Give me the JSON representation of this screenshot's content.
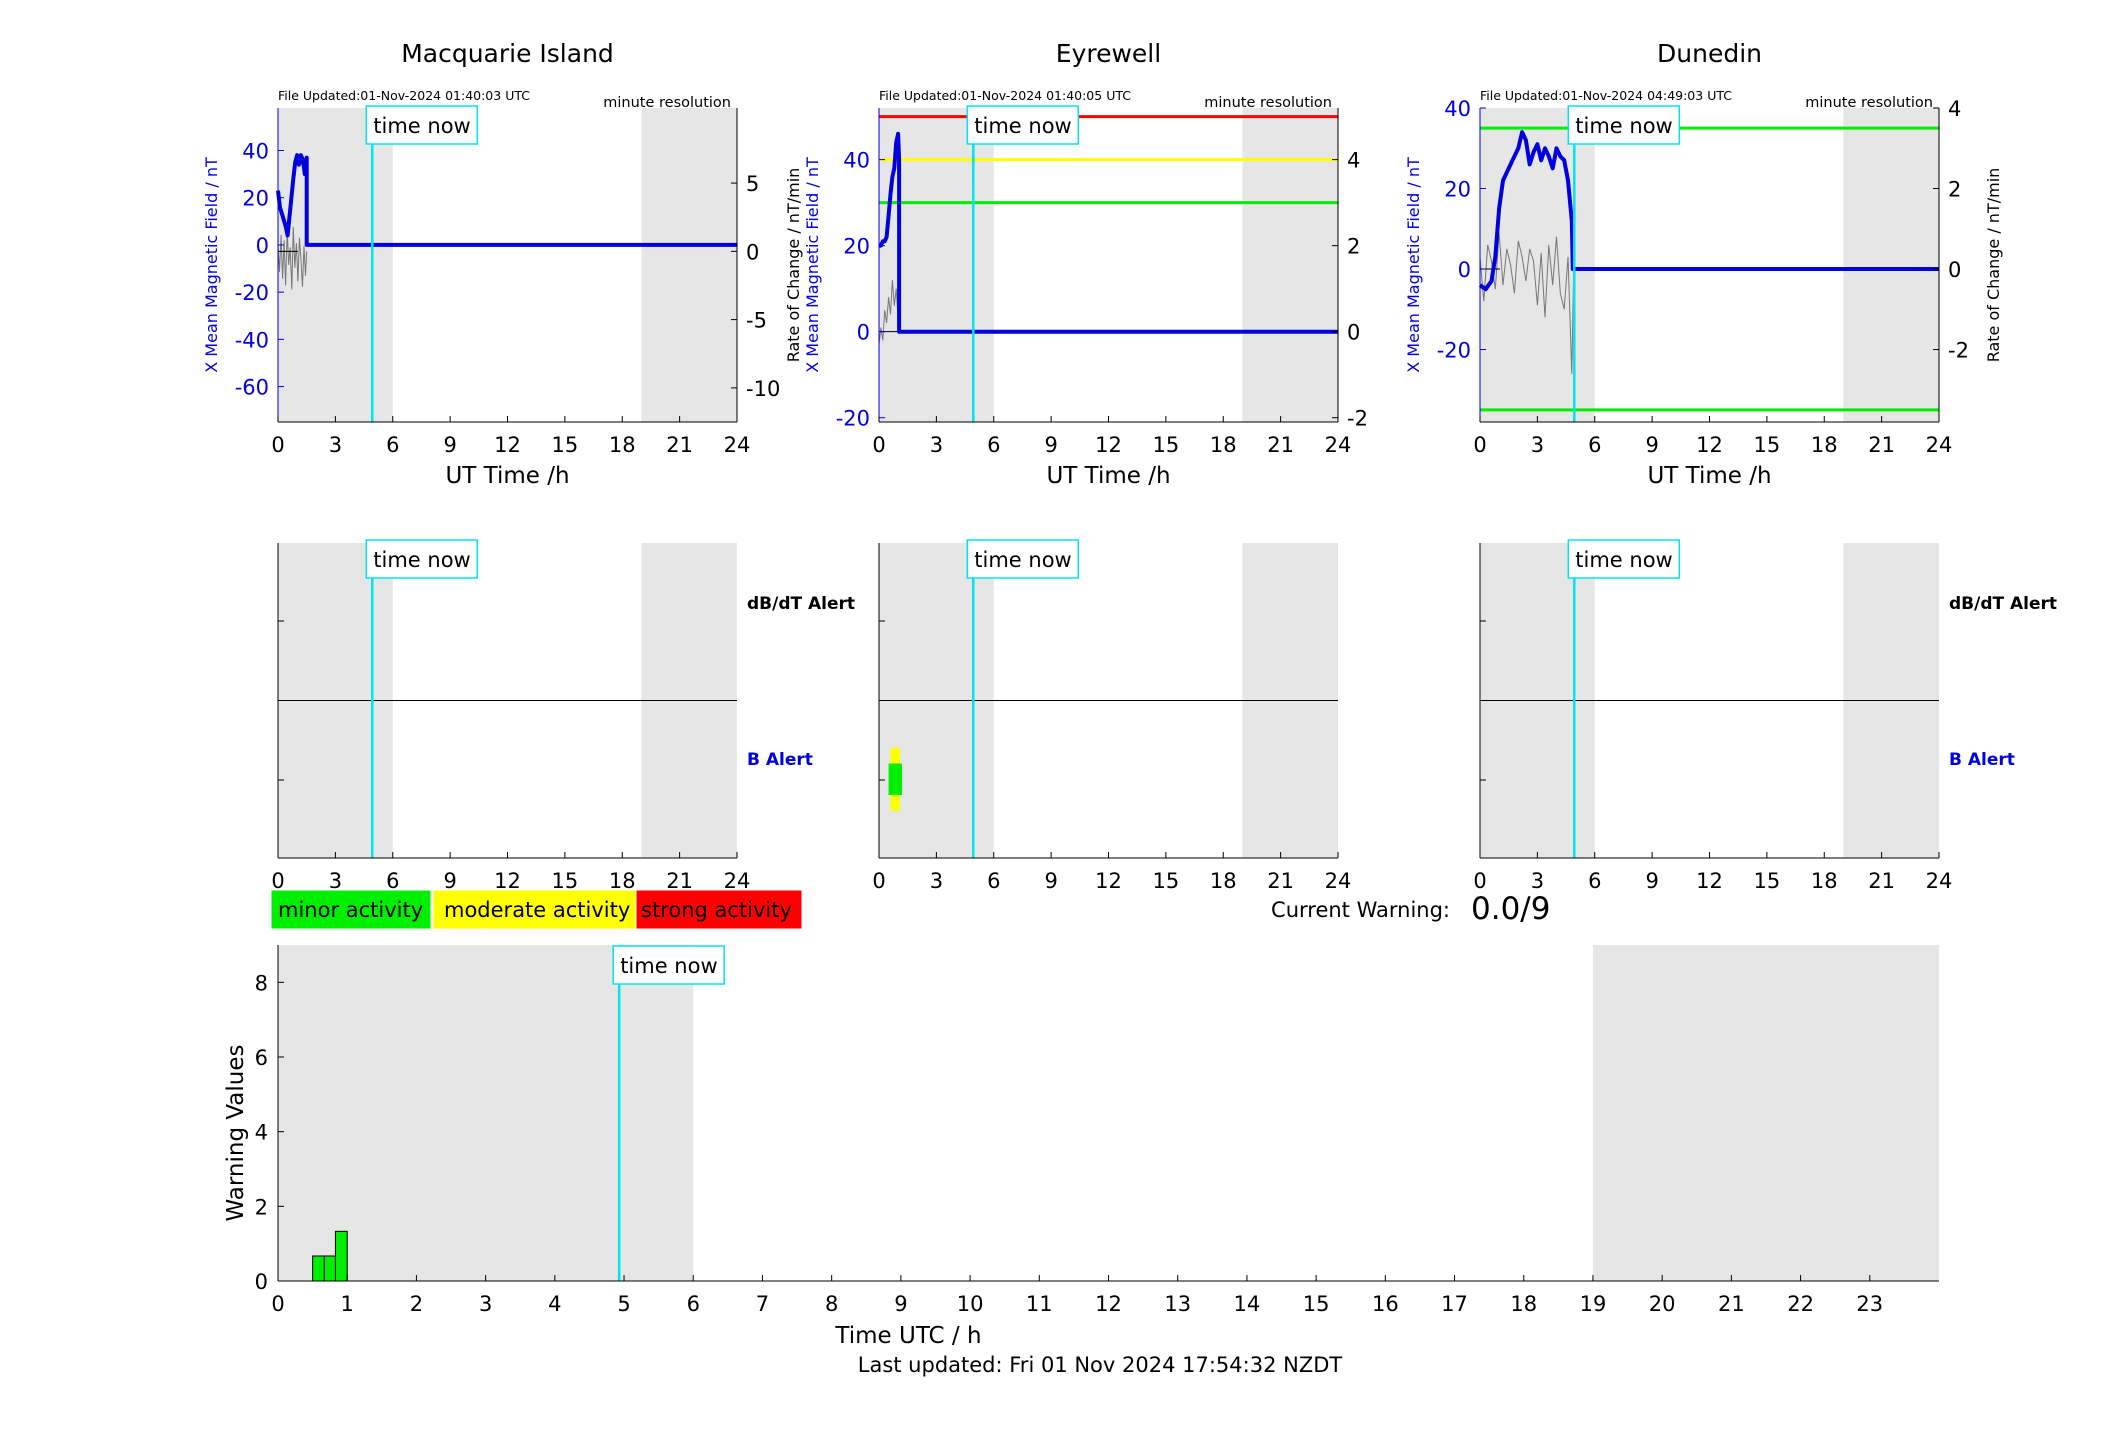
{
  "colors": {
    "night": "#e6e6e6",
    "x_field": "#0000e0",
    "rate": "#777777",
    "now_line": "#00e5ee",
    "minor": "#00ee00",
    "moderate": "#ffff00",
    "strong": "#ff0000",
    "axis": "#000000"
  },
  "common": {
    "time_now_label": "time now",
    "now_hour": 4.93,
    "night_spans_h": [
      [
        0,
        6
      ],
      [
        19,
        24
      ]
    ],
    "x_label": "UT Time /h",
    "x_ticks": [
      0,
      3,
      6,
      9,
      12,
      15,
      18,
      21,
      24
    ],
    "resolution_label": "minute resolution",
    "left_axis_label": "X Mean Magnetic Field / nT",
    "right_axis_label": "Rate of Change / nT/min",
    "dbdt_alert_label": "dB/dT Alert",
    "b_alert_label": "B Alert"
  },
  "chart_data": [
    {
      "type": "line",
      "title": "Macquarie Island",
      "file_updated": "File Updated:01-Nov-2024 01:40:03 UTC",
      "xlim": [
        0,
        24
      ],
      "ylim_left": [
        -75,
        58
      ],
      "left_ticks": [
        -60,
        -40,
        -20,
        0,
        20,
        40
      ],
      "ylim_right": [
        -12.5,
        10.5
      ],
      "right_ticks": [
        -10,
        -5,
        0,
        5
      ],
      "has_left_label": true,
      "has_right_label": false,
      "threshold_lines": [],
      "series": [
        {
          "role": "x_field",
          "x": [
            0,
            0.1,
            0.25,
            0.4,
            0.5,
            0.6,
            0.7,
            0.8,
            0.9,
            1.0,
            1.1,
            1.2,
            1.3,
            1.4,
            1.5,
            1.5,
            24
          ],
          "y": [
            23,
            16,
            12,
            8,
            4,
            12,
            20,
            28,
            35,
            38,
            34,
            38,
            36,
            30,
            37,
            0,
            0
          ]
        },
        {
          "role": "rate",
          "x": [
            0,
            0.08,
            0.16,
            0.24,
            0.32,
            0.4,
            0.48,
            0.56,
            0.64,
            0.72,
            0.8,
            0.88,
            0.96,
            1.04,
            1.12,
            1.2,
            1.28,
            1.36,
            1.44,
            1.5
          ],
          "y": [
            0.5,
            -1.5,
            1.2,
            -2.0,
            0.8,
            -2.5,
            1.5,
            -1.0,
            0.3,
            -2.8,
            1.8,
            -1.2,
            0.6,
            -2.2,
            1.0,
            -0.5,
            -2.6,
            0.4,
            -1.8,
            0
          ]
        }
      ],
      "b_alert_blocks": []
    },
    {
      "type": "line",
      "title": "Eyrewell",
      "file_updated": "File Updated:01-Nov-2024 01:40:05 UTC",
      "xlim": [
        0,
        24
      ],
      "ylim_left": [
        -21,
        52
      ],
      "left_ticks": [
        -20,
        0,
        20,
        40
      ],
      "ylim_right": [
        -2.1,
        5.2
      ],
      "right_ticks": [
        -2,
        0,
        2,
        4
      ],
      "has_left_label": true,
      "has_right_label": true,
      "threshold_lines": [
        {
          "level": "strong",
          "value": 5
        },
        {
          "level": "moderate",
          "value": 4
        },
        {
          "level": "minor",
          "value": 3
        }
      ],
      "series": [
        {
          "role": "x_field",
          "x": [
            0,
            0.1,
            0.2,
            0.3,
            0.4,
            0.5,
            0.6,
            0.7,
            0.8,
            0.9,
            1.0,
            1.05,
            1.05,
            24
          ],
          "y": [
            20,
            20,
            21,
            21,
            22,
            27,
            32,
            36,
            38,
            44,
            46,
            40,
            0,
            0
          ]
        },
        {
          "role": "rate",
          "x": [
            0,
            0.1,
            0.2,
            0.3,
            0.4,
            0.5,
            0.6,
            0.7,
            0.8,
            0.9,
            1.0,
            1.05
          ],
          "y": [
            -0.3,
            0.1,
            -0.2,
            0.5,
            0.2,
            0.8,
            0.4,
            1.2,
            0.6,
            1.0,
            0.3,
            0
          ]
        }
      ],
      "b_alert_blocks": [
        {
          "x0": 0.6,
          "x1": 1.1,
          "level": "moderate",
          "y0": 0.3,
          "y1": 0.7
        },
        {
          "x0": 0.5,
          "x1": 1.2,
          "level": "minor",
          "y0": 0.4,
          "y1": 0.6
        }
      ]
    },
    {
      "type": "line",
      "title": "Dunedin",
      "file_updated": "File Updated:01-Nov-2024 04:49:03 UTC",
      "xlim": [
        0,
        24
      ],
      "ylim_left": [
        -38,
        40
      ],
      "left_ticks": [
        -20,
        0,
        20,
        40
      ],
      "ylim_right": [
        -3.8,
        4.0
      ],
      "right_ticks": [
        -2,
        0,
        2,
        4
      ],
      "has_left_label": true,
      "has_right_label": true,
      "threshold_lines": [
        {
          "level": "minor",
          "value": 3.5
        },
        {
          "level": "minor",
          "value": -3.5
        }
      ],
      "series": [
        {
          "role": "x_field",
          "x": [
            0,
            0.3,
            0.6,
            0.8,
            1.0,
            1.2,
            1.5,
            1.8,
            2.0,
            2.2,
            2.4,
            2.6,
            2.8,
            3.0,
            3.2,
            3.4,
            3.6,
            3.8,
            4.0,
            4.2,
            4.4,
            4.6,
            4.8,
            4.85,
            4.9,
            24
          ],
          "y": [
            -4,
            -5,
            -3,
            3,
            15,
            22,
            25,
            28,
            30,
            34,
            32,
            26,
            29,
            31,
            27,
            30,
            28,
            25,
            30,
            28,
            27,
            22,
            12,
            0,
            0,
            0
          ]
        },
        {
          "role": "rate",
          "x": [
            0,
            0.2,
            0.4,
            0.6,
            0.8,
            1.0,
            1.2,
            1.4,
            1.6,
            1.8,
            2.0,
            2.2,
            2.4,
            2.6,
            2.8,
            3.0,
            3.2,
            3.4,
            3.6,
            3.8,
            4.0,
            4.2,
            4.4,
            4.6,
            4.8,
            4.9
          ],
          "y": [
            0.3,
            -0.8,
            0.6,
            0.2,
            -0.5,
            0.9,
            -0.4,
            0.5,
            0.1,
            -0.6,
            0.7,
            0.3,
            -0.3,
            0.5,
            0.2,
            -0.9,
            0.4,
            -1.2,
            0.6,
            -0.4,
            0.8,
            -0.6,
            -1.0,
            0.3,
            -2.6,
            0
          ]
        }
      ],
      "b_alert_blocks": []
    },
    {
      "type": "bar",
      "xlabel": "Time UTC / h",
      "ylabel": "Warning Values",
      "xlim": [
        0,
        24
      ],
      "x_ticks": [
        0,
        1,
        2,
        3,
        4,
        5,
        6,
        7,
        8,
        9,
        10,
        11,
        12,
        13,
        14,
        15,
        16,
        17,
        18,
        19,
        20,
        21,
        22,
        23
      ],
      "ylim": [
        0,
        9
      ],
      "y_ticks": [
        0,
        2,
        4,
        6,
        8
      ],
      "bars": [
        {
          "x0": 0.5,
          "x1": 0.67,
          "value": 0.67
        },
        {
          "x0": 0.67,
          "x1": 0.83,
          "value": 0.67
        },
        {
          "x0": 0.83,
          "x1": 1.0,
          "value": 1.33
        }
      ],
      "night_spans_h": [
        [
          0,
          6
        ],
        [
          19,
          24
        ]
      ]
    }
  ],
  "legend": {
    "minor_label": "minor activity",
    "moderate_label": "moderate activity",
    "strong_label": "strong activity"
  },
  "warning": {
    "label": "Current Warning:",
    "value": "0.0/9"
  },
  "footer": {
    "last_updated": "Last updated: Fri 01 Nov 2024 17:54:32 NZDT"
  }
}
